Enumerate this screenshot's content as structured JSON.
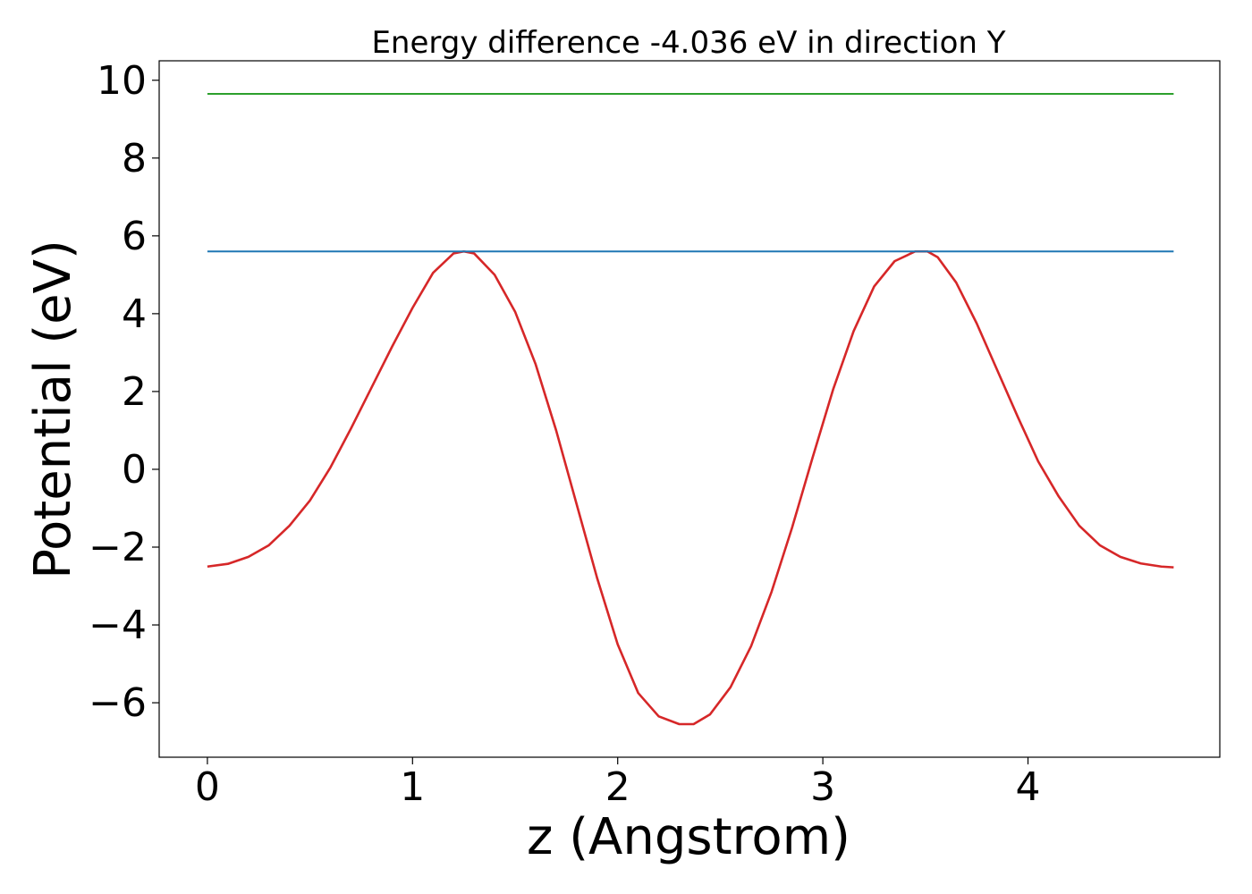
{
  "chart_data": {
    "type": "line",
    "title": "Energy difference -4.036 eV in direction Y",
    "xlabel": "z (Angstrom)",
    "ylabel": "Potential (eV)",
    "xlim": [
      -0.235,
      4.935
    ],
    "ylim": [
      -7.4,
      10.5
    ],
    "xticks": [
      0,
      1,
      2,
      3,
      4
    ],
    "xtick_labels": [
      "0",
      "1",
      "2",
      "3",
      "4"
    ],
    "yticks": [
      -6,
      -4,
      -2,
      0,
      2,
      4,
      6,
      8,
      10
    ],
    "ytick_labels": [
      "−6",
      "−4",
      "−2",
      "0",
      "2",
      "4",
      "6",
      "8",
      "10"
    ],
    "grid": false,
    "legend": "none",
    "series": [
      {
        "color": "#d62728",
        "x": [
          0,
          0.1,
          0.2,
          0.3,
          0.4,
          0.5,
          0.6,
          0.7,
          0.8,
          0.9,
          1.0,
          1.1,
          1.2,
          1.25,
          1.3,
          1.4,
          1.5,
          1.6,
          1.7,
          1.8,
          1.9,
          2.0,
          2.1,
          2.2,
          2.3,
          2.37,
          2.45,
          2.55,
          2.65,
          2.75,
          2.85,
          2.95,
          3.05,
          3.15,
          3.25,
          3.35,
          3.45,
          3.51,
          3.56,
          3.65,
          3.75,
          3.85,
          3.95,
          4.05,
          4.15,
          4.25,
          4.35,
          4.45,
          4.55,
          4.65,
          4.71
        ],
        "y": [
          -2.5,
          -2.43,
          -2.25,
          -1.95,
          -1.45,
          -0.8,
          0.05,
          1.05,
          2.1,
          3.15,
          4.15,
          5.05,
          5.55,
          5.6,
          5.55,
          5.0,
          4.05,
          2.7,
          1.0,
          -0.9,
          -2.8,
          -4.5,
          -5.75,
          -6.35,
          -6.55,
          -6.55,
          -6.3,
          -5.6,
          -4.55,
          -3.15,
          -1.5,
          0.3,
          2.05,
          3.55,
          4.7,
          5.35,
          5.6,
          5.6,
          5.45,
          4.8,
          3.75,
          2.55,
          1.35,
          0.2,
          -0.7,
          -1.45,
          -1.95,
          -2.25,
          -2.42,
          -2.5,
          -2.52
        ]
      },
      {
        "color": "#1f77b4",
        "x": [
          0,
          4.71
        ],
        "y": [
          5.6,
          5.6
        ]
      },
      {
        "color": "#2ca02c",
        "x": [
          0,
          4.71
        ],
        "y": [
          9.65,
          9.65
        ]
      }
    ]
  }
}
